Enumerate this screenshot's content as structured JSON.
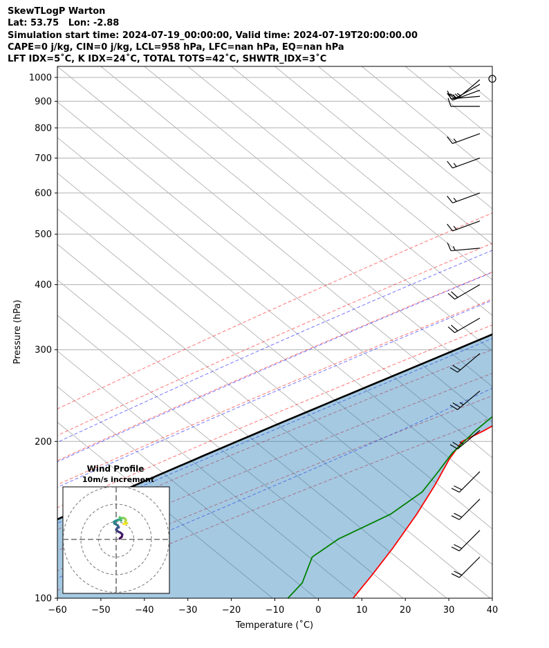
{
  "header": {
    "lines": [
      "SkewTLogP Warton",
      "Lat: 53.75   Lon: -2.88",
      "Simulation start time: 2024-07-19_00:00:00, Valid time: 2024-07-19T20:00:00.00",
      "CAPE=0 j/kg, CIN=0 j/kg, LCL=958 hPa, LFC=nan hPa, EQ=nan hPa",
      "LFT IDX=5˚C, K IDX=24˚C, TOTAL TOTS=42˚C, SHWTR_IDX=3˚C"
    ]
  },
  "chart_data": {
    "type": "line",
    "xlabel": "Temperature (˚C)",
    "ylabel": "Pressure (hPa)",
    "xlim": [
      -60,
      40
    ],
    "ylim": [
      1050,
      100
    ],
    "y_scale": "log",
    "x_ticks": [
      "−60",
      "−50",
      "−40",
      "−30",
      "−20",
      "−10",
      "0",
      "10",
      "20",
      "30",
      "40"
    ],
    "y_ticks": [
      1000,
      900,
      800,
      700,
      600,
      500,
      400,
      300,
      200,
      100
    ],
    "grid": true,
    "series": [
      {
        "role": "temperature",
        "color": "#ff0000",
        "points": [
          [
            19,
            1000
          ],
          [
            18,
            960
          ],
          [
            17.5,
            930
          ],
          [
            17,
            900
          ],
          [
            16.5,
            870
          ],
          [
            16,
            850
          ],
          [
            16,
            800
          ],
          [
            16.5,
            750
          ],
          [
            16,
            700
          ],
          [
            15.5,
            650
          ],
          [
            15,
            600
          ],
          [
            14,
            550
          ],
          [
            12,
            500
          ],
          [
            10,
            450
          ],
          [
            7,
            400
          ],
          [
            5,
            350
          ],
          [
            3,
            300
          ],
          [
            0,
            270
          ],
          [
            -5,
            240
          ],
          [
            -9,
            210
          ],
          [
            -11,
            200
          ],
          [
            -9,
            185
          ],
          [
            -5,
            165
          ],
          [
            -1,
            145
          ],
          [
            3,
            125
          ],
          [
            6,
            110
          ],
          [
            8,
            100
          ]
        ]
      },
      {
        "role": "dewpoint",
        "color": "#008000",
        "points": [
          [
            16,
            1000
          ],
          [
            17,
            960
          ],
          [
            16,
            930
          ],
          [
            16,
            900
          ],
          [
            15,
            860
          ],
          [
            13,
            800
          ],
          [
            10,
            750
          ],
          [
            4,
            700
          ],
          [
            -3,
            650
          ],
          [
            -7,
            600
          ],
          [
            -8,
            550
          ],
          [
            -8,
            500
          ],
          [
            -7,
            450
          ],
          [
            -3,
            400
          ],
          [
            -1,
            370
          ],
          [
            -2,
            340
          ],
          [
            -4,
            320
          ],
          [
            -12,
            290
          ],
          [
            -14,
            270
          ],
          [
            -12,
            250
          ],
          [
            -11,
            230
          ],
          [
            -11,
            210
          ],
          [
            -10,
            190
          ],
          [
            -8,
            175
          ],
          [
            -6,
            160
          ],
          [
            -7,
            145
          ],
          [
            -12,
            130
          ],
          [
            -13,
            120
          ],
          [
            -8,
            107
          ],
          [
            -7,
            100
          ]
        ]
      },
      {
        "role": "parcel",
        "color": "#000000",
        "points": [
          [
            20,
            1000
          ],
          [
            17.5,
            958
          ],
          [
            -60,
            100
          ]
        ]
      }
    ],
    "dry_adiabats_theta_c": [
      -30,
      -10,
      10,
      30,
      50,
      70,
      90,
      110,
      130
    ],
    "moist_adiabats_c": [
      -10,
      0,
      10,
      20,
      30
    ],
    "mixing_ratios_gkg": [
      0.4,
      1,
      2,
      4,
      7,
      10,
      16,
      24
    ],
    "isotherm_spacing_c": 10,
    "wind_barbs": [
      {
        "p": 1000,
        "speed_kt": 0,
        "dir_deg": 0
      },
      {
        "p": 990,
        "speed_kt": 15,
        "dir_deg": 230
      },
      {
        "p": 970,
        "speed_kt": 15,
        "dir_deg": 240
      },
      {
        "p": 945,
        "speed_kt": 15,
        "dir_deg": 250
      },
      {
        "p": 920,
        "speed_kt": 15,
        "dir_deg": 265
      },
      {
        "p": 880,
        "speed_kt": 10,
        "dir_deg": 270
      },
      {
        "p": 780,
        "speed_kt": 15,
        "dir_deg": 250
      },
      {
        "p": 700,
        "speed_kt": 15,
        "dir_deg": 250
      },
      {
        "p": 600,
        "speed_kt": 15,
        "dir_deg": 250
      },
      {
        "p": 530,
        "speed_kt": 15,
        "dir_deg": 250
      },
      {
        "p": 470,
        "speed_kt": 15,
        "dir_deg": 265
      },
      {
        "p": 400,
        "speed_kt": 20,
        "dir_deg": 240
      },
      {
        "p": 345,
        "speed_kt": 20,
        "dir_deg": 240
      },
      {
        "p": 295,
        "speed_kt": 20,
        "dir_deg": 230
      },
      {
        "p": 250,
        "speed_kt": 25,
        "dir_deg": 230
      },
      {
        "p": 210,
        "speed_kt": 25,
        "dir_deg": 230
      },
      {
        "p": 175,
        "speed_kt": 20,
        "dir_deg": 225
      },
      {
        "p": 155,
        "speed_kt": 20,
        "dir_deg": 225
      },
      {
        "p": 135,
        "speed_kt": 20,
        "dir_deg": 225
      },
      {
        "p": 120,
        "speed_kt": 20,
        "dir_deg": 225
      }
    ],
    "hodograph": {
      "title": "Wind Profile",
      "subtitle": "10m/s increment",
      "rings_ms": [
        10,
        20,
        30
      ],
      "points": [
        [
          2.0,
          0.5
        ],
        [
          3.2,
          1.5
        ],
        [
          3.5,
          2.8
        ],
        [
          2.5,
          3.8
        ],
        [
          1.0,
          4.5
        ],
        [
          0.0,
          5.5
        ],
        [
          0.6,
          6.5
        ],
        [
          1.5,
          6.8
        ],
        [
          1.0,
          7.8
        ],
        [
          0.0,
          8.5
        ],
        [
          -1.0,
          9.0
        ],
        [
          -1.2,
          10.0
        ],
        [
          -0.2,
          10.6
        ],
        [
          0.8,
          11.0
        ],
        [
          2.2,
          11.2
        ],
        [
          2.8,
          10.7
        ],
        [
          2.4,
          11.6
        ],
        [
          2.0,
          12.5
        ],
        [
          3.0,
          12.0
        ],
        [
          4.0,
          12.2
        ],
        [
          5.0,
          11.8
        ],
        [
          5.6,
          11.0
        ],
        [
          5.0,
          10.0
        ],
        [
          6.2,
          9.2
        ],
        [
          5.2,
          8.8
        ],
        [
          4.2,
          8.7
        ]
      ]
    }
  }
}
